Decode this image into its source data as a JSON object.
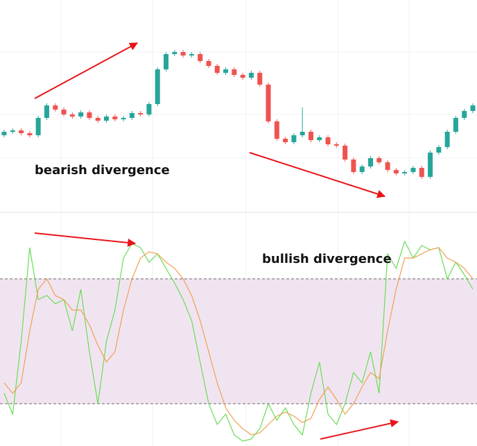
{
  "chart_data": [
    {
      "type": "candlestick",
      "annotation": "bearish divergence",
      "ylim": [
        0,
        300
      ],
      "up_color": "#26a69a",
      "down_color": "#ef5350",
      "open": [
        105,
        110,
        112,
        108,
        105,
        130,
        148,
        142,
        135,
        132,
        138,
        130,
        126,
        132,
        128,
        130,
        137,
        135,
        150,
        200,
        222,
        225,
        220,
        222,
        212,
        205,
        195,
        200,
        192,
        188,
        195,
        178,
        125,
        100,
        95,
        105,
        110,
        98,
        102,
        92,
        90,
        70,
        52,
        60,
        72,
        66,
        55,
        50,
        52,
        58,
        45,
        80,
        88,
        110,
        130,
        140
      ],
      "high": [
        113,
        115,
        115,
        111,
        133,
        151,
        151,
        145,
        138,
        141,
        141,
        133,
        135,
        135,
        133,
        140,
        140,
        153,
        203,
        225,
        228,
        228,
        225,
        225,
        215,
        208,
        203,
        203,
        195,
        198,
        198,
        181,
        128,
        103,
        108,
        145,
        113,
        105,
        105,
        95,
        93,
        73,
        63,
        75,
        75,
        69,
        58,
        55,
        61,
        61,
        83,
        91,
        113,
        133,
        143,
        151
      ],
      "low": [
        102,
        107,
        105,
        102,
        102,
        127,
        139,
        132,
        129,
        129,
        127,
        123,
        123,
        125,
        125,
        127,
        132,
        132,
        147,
        197,
        219,
        217,
        217,
        209,
        202,
        192,
        192,
        189,
        185,
        185,
        175,
        122,
        97,
        92,
        92,
        102,
        95,
        95,
        89,
        87,
        67,
        49,
        49,
        57,
        63,
        52,
        47,
        47,
        49,
        42,
        42,
        77,
        85,
        107,
        127,
        137
      ],
      "close": [
        110,
        112,
        108,
        105,
        130,
        148,
        142,
        135,
        132,
        138,
        130,
        126,
        132,
        128,
        130,
        137,
        135,
        150,
        200,
        222,
        225,
        220,
        222,
        212,
        205,
        195,
        200,
        192,
        188,
        195,
        178,
        125,
        100,
        95,
        105,
        110,
        98,
        102,
        92,
        90,
        70,
        52,
        60,
        72,
        66,
        55,
        50,
        52,
        58,
        45,
        80,
        88,
        110,
        130,
        140,
        148
      ]
    },
    {
      "type": "line",
      "annotation": "bullish divergence",
      "ylim": [
        0,
        100
      ],
      "levels": [
        80,
        20
      ],
      "band_color": "#f1e4f1",
      "series": [
        {
          "color": "#66dd55",
          "values": [
            25,
            15,
            50,
            95,
            70,
            72,
            68,
            70,
            55,
            75,
            45,
            20,
            50,
            65,
            90,
            97,
            95,
            88,
            92,
            85,
            78,
            70,
            60,
            40,
            20,
            10,
            15,
            5,
            2,
            3,
            8,
            20,
            12,
            18,
            10,
            5,
            25,
            40,
            15,
            10,
            20,
            35,
            30,
            45,
            25,
            92,
            85,
            98,
            90,
            96,
            94,
            95,
            80,
            88,
            82,
            75
          ]
        },
        {
          "color": "#f0a050",
          "values": [
            30,
            25,
            30,
            55,
            75,
            80,
            72,
            70,
            65,
            65,
            58,
            48,
            40,
            45,
            65,
            80,
            90,
            93,
            92,
            88,
            85,
            80,
            72,
            60,
            45,
            30,
            18,
            12,
            8,
            5,
            6,
            10,
            14,
            16,
            14,
            11,
            13,
            22,
            28,
            22,
            15,
            20,
            28,
            35,
            32,
            55,
            75,
            90,
            90,
            92,
            94,
            95,
            90,
            88,
            85,
            80
          ]
        }
      ]
    }
  ]
}
